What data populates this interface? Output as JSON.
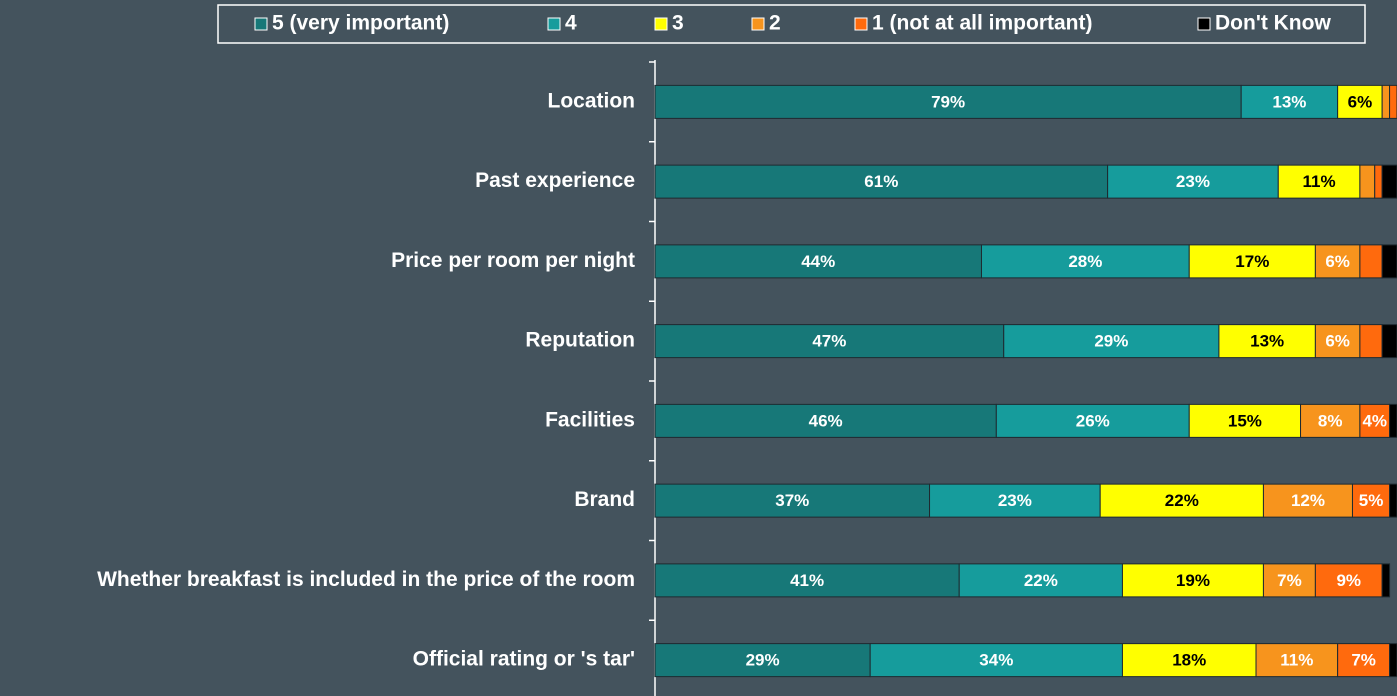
{
  "chart_data": {
    "type": "stacked-barh",
    "categories": [
      "Location",
      "Past experience",
      "Price per room per night",
      "Reputation",
      "Facilities",
      "Brand",
      "Whether breakfast is included in the price of the room",
      "Official rating or 's tar'"
    ],
    "xlim": [
      0,
      100
    ],
    "legend": "top",
    "series": [
      {
        "name": "5 (very important)",
        "color": "#177878",
        "label_color": "#ffffff",
        "values": [
          79,
          61,
          44,
          47,
          46,
          37,
          41,
          29
        ],
        "value_labels": [
          "79%",
          "61%",
          "44%",
          "47%",
          "46%",
          "37%",
          "41%",
          "29%"
        ]
      },
      {
        "name": "4",
        "color": "#169c9c",
        "label_color": "#ffffff",
        "values": [
          13,
          23,
          28,
          29,
          26,
          23,
          22,
          34
        ],
        "value_labels": [
          "13%",
          "23%",
          "28%",
          "29%",
          "26%",
          "23%",
          "22%",
          "34%"
        ]
      },
      {
        "name": "3",
        "color": "#ffff00",
        "label_color": "#000000",
        "values": [
          6,
          11,
          17,
          13,
          15,
          22,
          19,
          18
        ],
        "value_labels": [
          "6%",
          "11%",
          "17%",
          "13%",
          "15%",
          "22%",
          "19%",
          "18%"
        ]
      },
      {
        "name": "2",
        "color": "#f7941d",
        "label_color": "#ffffff",
        "values": [
          1,
          2,
          6,
          6,
          8,
          12,
          7,
          11
        ],
        "value_labels": [
          null,
          null,
          "6%",
          "6%",
          "8%",
          "12%",
          "7%",
          "11%"
        ]
      },
      {
        "name": "1 (not at all important)",
        "color": "#ff6a0d",
        "label_color": "#ffffff",
        "values": [
          1,
          1,
          3,
          3,
          4,
          5,
          9,
          7
        ],
        "value_labels": [
          null,
          null,
          null,
          null,
          "4%",
          "5%",
          "9%",
          "7%"
        ]
      },
      {
        "name": "Don't Know",
        "color": "#000000",
        "label_color": "#ffffff",
        "values": [
          0,
          2,
          2,
          2,
          1,
          1,
          1,
          1
        ],
        "value_labels": [
          null,
          null,
          null,
          null,
          null,
          null,
          null,
          null
        ]
      }
    ]
  }
}
